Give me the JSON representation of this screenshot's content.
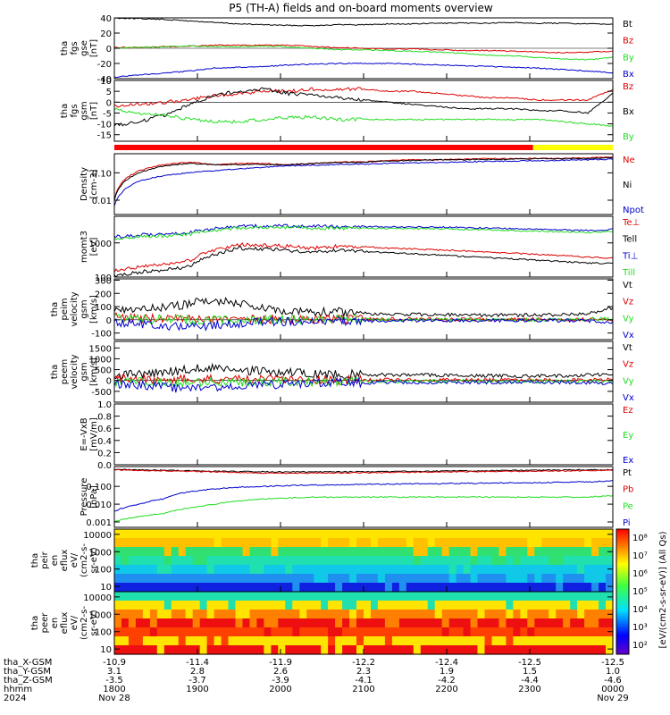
{
  "title": "P5 (TH-A) fields and on-board moments overview",
  "colors": {
    "black": "#000000",
    "red": "#dd0000",
    "green": "#22dd22",
    "blue": "#0000cc",
    "yellow": "#ffff00",
    "bar_red": "#ff0000"
  },
  "chart_data": [
    {
      "type": "line",
      "panel": "tha fgs gse",
      "ylabel": [
        "tha",
        "fgs",
        "gse",
        "[nT]"
      ],
      "ylim": [
        -40,
        40
      ],
      "yticks": [
        "-40",
        "-20",
        "0",
        "20",
        "40"
      ],
      "ytick_values": [
        -40,
        -20,
        0,
        20,
        40
      ],
      "series": [
        {
          "name": "Bt",
          "color": "#000000",
          "values": [
            40,
            39,
            38,
            36,
            34,
            32,
            31,
            30,
            30,
            31,
            31,
            32,
            32,
            33,
            33,
            33,
            34,
            33,
            33,
            32,
            32
          ]
        },
        {
          "name": "Bz",
          "color": "#dd0000",
          "values": [
            1,
            1,
            2,
            3,
            4,
            4,
            4,
            4,
            2,
            1,
            0,
            -1,
            -1,
            -2,
            -3,
            -3,
            -4,
            -5,
            -6,
            -5,
            -4
          ]
        },
        {
          "name": "By",
          "color": "#22dd22",
          "values": [
            0,
            1,
            2,
            3,
            2,
            2,
            3,
            2,
            0,
            -2,
            -2,
            -3,
            -4,
            -5,
            -7,
            -9,
            -10,
            -12,
            -14,
            -15,
            -12
          ]
        },
        {
          "name": "Bx",
          "color": "#0000cc",
          "values": [
            -38,
            -35,
            -33,
            -30,
            -26,
            -25,
            -24,
            -22,
            -21,
            -20,
            -20,
            -20,
            -21,
            -22,
            -23,
            -24,
            -25,
            -26,
            -28,
            -30,
            -32
          ]
        }
      ]
    },
    {
      "type": "line",
      "panel": "tha fgs gsm",
      "ylabel": [
        "tha",
        "fgs",
        "gsm",
        "[nT]"
      ],
      "ylim": [
        -18,
        10
      ],
      "yticks": [
        "-15",
        "-10",
        "-5",
        "0",
        "5",
        "10"
      ],
      "ytick_values": [
        -15,
        -10,
        -5,
        0,
        5,
        10
      ],
      "series": [
        {
          "name": "Bz",
          "color": "#dd0000",
          "values": [
            -2,
            -1,
            0,
            1,
            3,
            4,
            5,
            5,
            6,
            6,
            6,
            5,
            5,
            4,
            3,
            2,
            2,
            1,
            1,
            1,
            6
          ]
        },
        {
          "name": "Bx",
          "color": "#000000",
          "values": [
            -11,
            -9,
            -6,
            -1,
            3,
            5,
            6,
            4,
            3,
            2,
            1,
            0,
            -1,
            -2,
            -3,
            -3,
            -3,
            -4,
            -4,
            -5,
            4
          ]
        },
        {
          "name": "By",
          "color": "#22dd22",
          "values": [
            -3,
            -5,
            -6,
            -8,
            -9,
            -9,
            -8,
            -7,
            -7,
            -8,
            -8,
            -8,
            -8,
            -8,
            -8,
            -8,
            -8,
            -8,
            -9,
            -10,
            -11
          ]
        }
      ]
    },
    {
      "type": "line",
      "panel": "Density",
      "ylabel": [
        "Density",
        "[cm-3]"
      ],
      "scale": "log",
      "ylim": [
        0.003,
        0.5
      ],
      "yticks": [
        "0.01",
        "0.10"
      ],
      "ytick_values": [
        0.01,
        0.1
      ],
      "series": [
        {
          "name": "Ne",
          "color": "#dd0000",
          "values": [
            0.01,
            0.12,
            0.2,
            0.25,
            0.2,
            0.22,
            0.22,
            0.2,
            0.22,
            0.25,
            0.25,
            0.28,
            0.3,
            0.3,
            0.32,
            0.33,
            0.33,
            0.34,
            0.34,
            0.35,
            0.38
          ]
        },
        {
          "name": "Ni",
          "color": "#000000",
          "values": [
            0.01,
            0.1,
            0.18,
            0.22,
            0.2,
            0.2,
            0.2,
            0.2,
            0.22,
            0.24,
            0.25,
            0.27,
            0.28,
            0.3,
            0.3,
            0.31,
            0.32,
            0.33,
            0.33,
            0.34,
            0.36
          ]
        },
        {
          "name": "Npot",
          "color": "#0000cc",
          "values": [
            0.006,
            0.05,
            0.08,
            0.1,
            0.12,
            0.14,
            0.16,
            0.18,
            0.19,
            0.2,
            0.21,
            0.22,
            0.23,
            0.24,
            0.25,
            0.26,
            0.27,
            0.28,
            0.29,
            0.3,
            0.32
          ]
        }
      ]
    },
    {
      "type": "line",
      "panel": "mom",
      "ylabel": [
        "momt3",
        "[eV]"
      ],
      "scale": "log",
      "ylim": [
        100,
        6000
      ],
      "yticks": [
        "100",
        "1000"
      ],
      "ytick_values": [
        100,
        1000
      ],
      "series": [
        {
          "name": "Te⊥",
          "color": "#dd0000",
          "values": [
            150,
            200,
            230,
            300,
            600,
            900,
            850,
            800,
            700,
            800,
            760,
            700,
            660,
            620,
            580,
            540,
            500,
            460,
            420,
            380,
            360
          ]
        },
        {
          "name": "Tell",
          "color": "#000000",
          "values": [
            110,
            140,
            160,
            200,
            450,
            700,
            650,
            600,
            520,
            600,
            560,
            520,
            480,
            440,
            400,
            370,
            340,
            310,
            280,
            260,
            250
          ]
        },
        {
          "name": "Ti⊥",
          "color": "#0000cc",
          "values": [
            1500,
            1700,
            1800,
            2000,
            2600,
            3000,
            3100,
            3100,
            3000,
            3000,
            3000,
            2900,
            2900,
            2900,
            2800,
            2700,
            2600,
            2500,
            2400,
            2300,
            2500
          ]
        },
        {
          "name": "Till",
          "color": "#22dd22",
          "values": [
            1300,
            1500,
            1600,
            1800,
            2300,
            2700,
            2800,
            2800,
            2700,
            2700,
            2700,
            2600,
            2600,
            2600,
            2500,
            2400,
            2300,
            2200,
            2100,
            2000,
            2200
          ]
        }
      ]
    },
    {
      "type": "line",
      "panel": "tha peim velocity gsm",
      "ylabel": [
        "tha",
        "peim",
        "velocity",
        "gsm",
        "[km/s]"
      ],
      "ylim": [
        -150,
        310
      ],
      "yticks": [
        "-100",
        "0",
        "100",
        "200",
        "300"
      ],
      "ytick_values": [
        -100,
        0,
        100,
        200,
        300
      ],
      "series": [
        {
          "name": "Vt",
          "color": "#000000",
          "values": [
            60,
            80,
            90,
            120,
            150,
            120,
            90,
            70,
            60,
            60,
            50,
            45,
            40,
            40,
            35,
            35,
            35,
            35,
            40,
            45,
            90
          ]
        },
        {
          "name": "Vz",
          "color": "#dd0000",
          "values": [
            20,
            15,
            10,
            20,
            10,
            10,
            5,
            5,
            5,
            5,
            5,
            3,
            3,
            3,
            2,
            2,
            2,
            2,
            2,
            3,
            5
          ]
        },
        {
          "name": "Vy",
          "color": "#22dd22",
          "values": [
            10,
            5,
            5,
            0,
            0,
            0,
            5,
            5,
            5,
            5,
            0,
            0,
            0,
            0,
            0,
            0,
            0,
            0,
            0,
            5,
            10
          ]
        },
        {
          "name": "Vx",
          "color": "#0000cc",
          "values": [
            -20,
            -30,
            -40,
            -60,
            -40,
            -30,
            -20,
            -15,
            -10,
            -10,
            -10,
            -5,
            -5,
            -5,
            -5,
            -5,
            -5,
            -5,
            -5,
            -10,
            -20
          ]
        }
      ]
    },
    {
      "type": "line",
      "panel": "tha peem velocity gsm",
      "ylabel": [
        "tha",
        "peem",
        "velocity",
        "gsm",
        "[km/s]"
      ],
      "ylim": [
        -1000,
        1800
      ],
      "yticks": [
        "-500",
        "0",
        "500",
        "1000",
        "1500"
      ],
      "ytick_values": [
        -500,
        0,
        500,
        1000,
        1500
      ],
      "series": [
        {
          "name": "Vt",
          "color": "#000000",
          "values": [
            200,
            300,
            400,
            500,
            600,
            500,
            400,
            350,
            300,
            300,
            280,
            260,
            250,
            240,
            230,
            220,
            210,
            200,
            220,
            250,
            300
          ]
        },
        {
          "name": "Vz",
          "color": "#dd0000",
          "values": [
            50,
            40,
            50,
            60,
            50,
            40,
            40,
            30,
            30,
            30,
            30,
            30,
            20,
            20,
            20,
            20,
            20,
            20,
            20,
            20,
            30
          ]
        },
        {
          "name": "Vy",
          "color": "#22dd22",
          "values": [
            -50,
            -60,
            -80,
            -100,
            -80,
            -70,
            -60,
            -50,
            -50,
            -50,
            -40,
            -40,
            -40,
            -40,
            -40,
            -40,
            -40,
            -40,
            -40,
            -50,
            -60
          ]
        },
        {
          "name": "Vx",
          "color": "#0000cc",
          "values": [
            -150,
            -200,
            -300,
            -400,
            -300,
            -250,
            -200,
            -150,
            -120,
            -100,
            -100,
            -90,
            -80,
            -80,
            -80,
            -80,
            -80,
            -80,
            -80,
            -100,
            -150
          ]
        }
      ]
    },
    {
      "type": "line",
      "panel": "E=-VxB",
      "ylabel": [
        "E=-VxB",
        "[mV/m]"
      ],
      "ylim": [
        0,
        1
      ],
      "yticks": [
        "0.0",
        "0.2",
        "0.4",
        "0.6",
        "0.8",
        "1.0"
      ],
      "ytick_values": [
        0,
        0.2,
        0.4,
        0.6,
        0.8,
        1
      ],
      "series": [
        {
          "name": "Ez",
          "color": "#dd0000",
          "values": []
        },
        {
          "name": "Ey",
          "color": "#22dd22",
          "values": []
        },
        {
          "name": "Ex",
          "color": "#0000cc",
          "values": []
        }
      ]
    },
    {
      "type": "line",
      "panel": "Pressure",
      "ylabel": [
        "Pressure",
        "[nPa]"
      ],
      "scale": "log",
      "ylim": [
        0.0005,
        1.3
      ],
      "yticks": [
        "0.001",
        "0.010",
        "0.100"
      ],
      "ytick_values": [
        0.001,
        0.01,
        0.1
      ],
      "series": [
        {
          "name": "Pt",
          "color": "#000000",
          "values": [
            0.9,
            0.85,
            0.8,
            0.75,
            0.7,
            0.68,
            0.66,
            0.65,
            0.65,
            0.66,
            0.67,
            0.68,
            0.7,
            0.72,
            0.74,
            0.76,
            0.78,
            0.8,
            0.82,
            0.84,
            0.86
          ]
        },
        {
          "name": "Pb",
          "color": "#dd0000",
          "values": [
            0.85,
            0.8,
            0.75,
            0.7,
            0.65,
            0.6,
            0.55,
            0.55,
            0.56,
            0.57,
            0.58,
            0.6,
            0.62,
            0.64,
            0.66,
            0.68,
            0.7,
            0.72,
            0.74,
            0.76,
            0.8
          ]
        },
        {
          "name": "Pe",
          "color": "#22dd22",
          "values": [
            0.001,
            0.002,
            0.003,
            0.006,
            0.01,
            0.015,
            0.02,
            0.022,
            0.025,
            0.025,
            0.025,
            0.025,
            0.025,
            0.025,
            0.025,
            0.025,
            0.025,
            0.025,
            0.025,
            0.025,
            0.03
          ]
        },
        {
          "name": "Pi",
          "color": "#0000cc",
          "values": [
            0.004,
            0.01,
            0.02,
            0.05,
            0.07,
            0.09,
            0.1,
            0.11,
            0.12,
            0.12,
            0.13,
            0.13,
            0.14,
            0.14,
            0.15,
            0.15,
            0.16,
            0.16,
            0.17,
            0.18,
            0.2
          ]
        }
      ]
    },
    {
      "type": "heatmap",
      "panel": "tha peir en eflux",
      "ylabel": [
        "tha",
        "peir",
        "en",
        "eflux",
        "eV/",
        "(cm2-s-",
        "sr-eV)"
      ],
      "yticks": [
        "10",
        "100",
        "1000",
        "10000"
      ],
      "ytick_values": [
        10,
        100,
        1000,
        10000
      ],
      "colorscale": "rainbow",
      "description_rows_top_to_bottom": [
        "yellow",
        "yellow-orange",
        "green",
        "cyan-green",
        "cyan",
        "cyan-blue",
        "blue"
      ]
    },
    {
      "type": "heatmap",
      "panel": "tha peer en eflux",
      "ylabel": [
        "tha",
        "peer",
        "en",
        "eflux",
        "eV/",
        "(cm2-s-",
        "sr-eV)"
      ],
      "yticks": [
        "10",
        "100",
        "1000",
        "10000"
      ],
      "ytick_values": [
        10,
        100,
        1000,
        10000
      ],
      "colorscale": "rainbow",
      "description_rows_top_to_bottom": [
        "cyan-green",
        "yellow",
        "orange",
        "red",
        "red-orange",
        "yellow",
        "red"
      ]
    }
  ],
  "colorbar": {
    "label": "[eV/(cm2-s-sr-eV)] (All Qs)",
    "ticks": [
      "10²",
      "10³",
      "10⁴",
      "10⁵",
      "10⁶",
      "10⁷",
      "10⁸"
    ]
  },
  "xaxis": {
    "row_labels": [
      "tha_X-GSM",
      "tha_Y-GSM",
      "tha_Z-GSM",
      "hhmm",
      "2024"
    ],
    "columns": [
      {
        "x": "-10.9",
        "y": "3.1",
        "z": "-3.5",
        "t": "1800",
        "d": "Nov 28"
      },
      {
        "x": "-11.4",
        "y": "2.8",
        "z": "-3.7",
        "t": "1900",
        "d": ""
      },
      {
        "x": "-11.9",
        "y": "2.6",
        "z": "-3.9",
        "t": "2000",
        "d": ""
      },
      {
        "x": "-12.2",
        "y": "2.3",
        "z": "-4.1",
        "t": "2100",
        "d": ""
      },
      {
        "x": "-12.4",
        "y": "1.9",
        "z": "-4.2",
        "t": "2200",
        "d": ""
      },
      {
        "x": "-12.5",
        "y": "1.5",
        "z": "-4.4",
        "t": "2300",
        "d": ""
      },
      {
        "x": "-12.5",
        "y": "1.0",
        "z": "-4.6",
        "t": "0000",
        "d": "Nov 29"
      }
    ]
  },
  "mode_bar": {
    "segments": [
      {
        "color": "#ff0000",
        "fraction": 0.84
      },
      {
        "color": "#ffff00",
        "fraction": 0.16
      }
    ]
  }
}
